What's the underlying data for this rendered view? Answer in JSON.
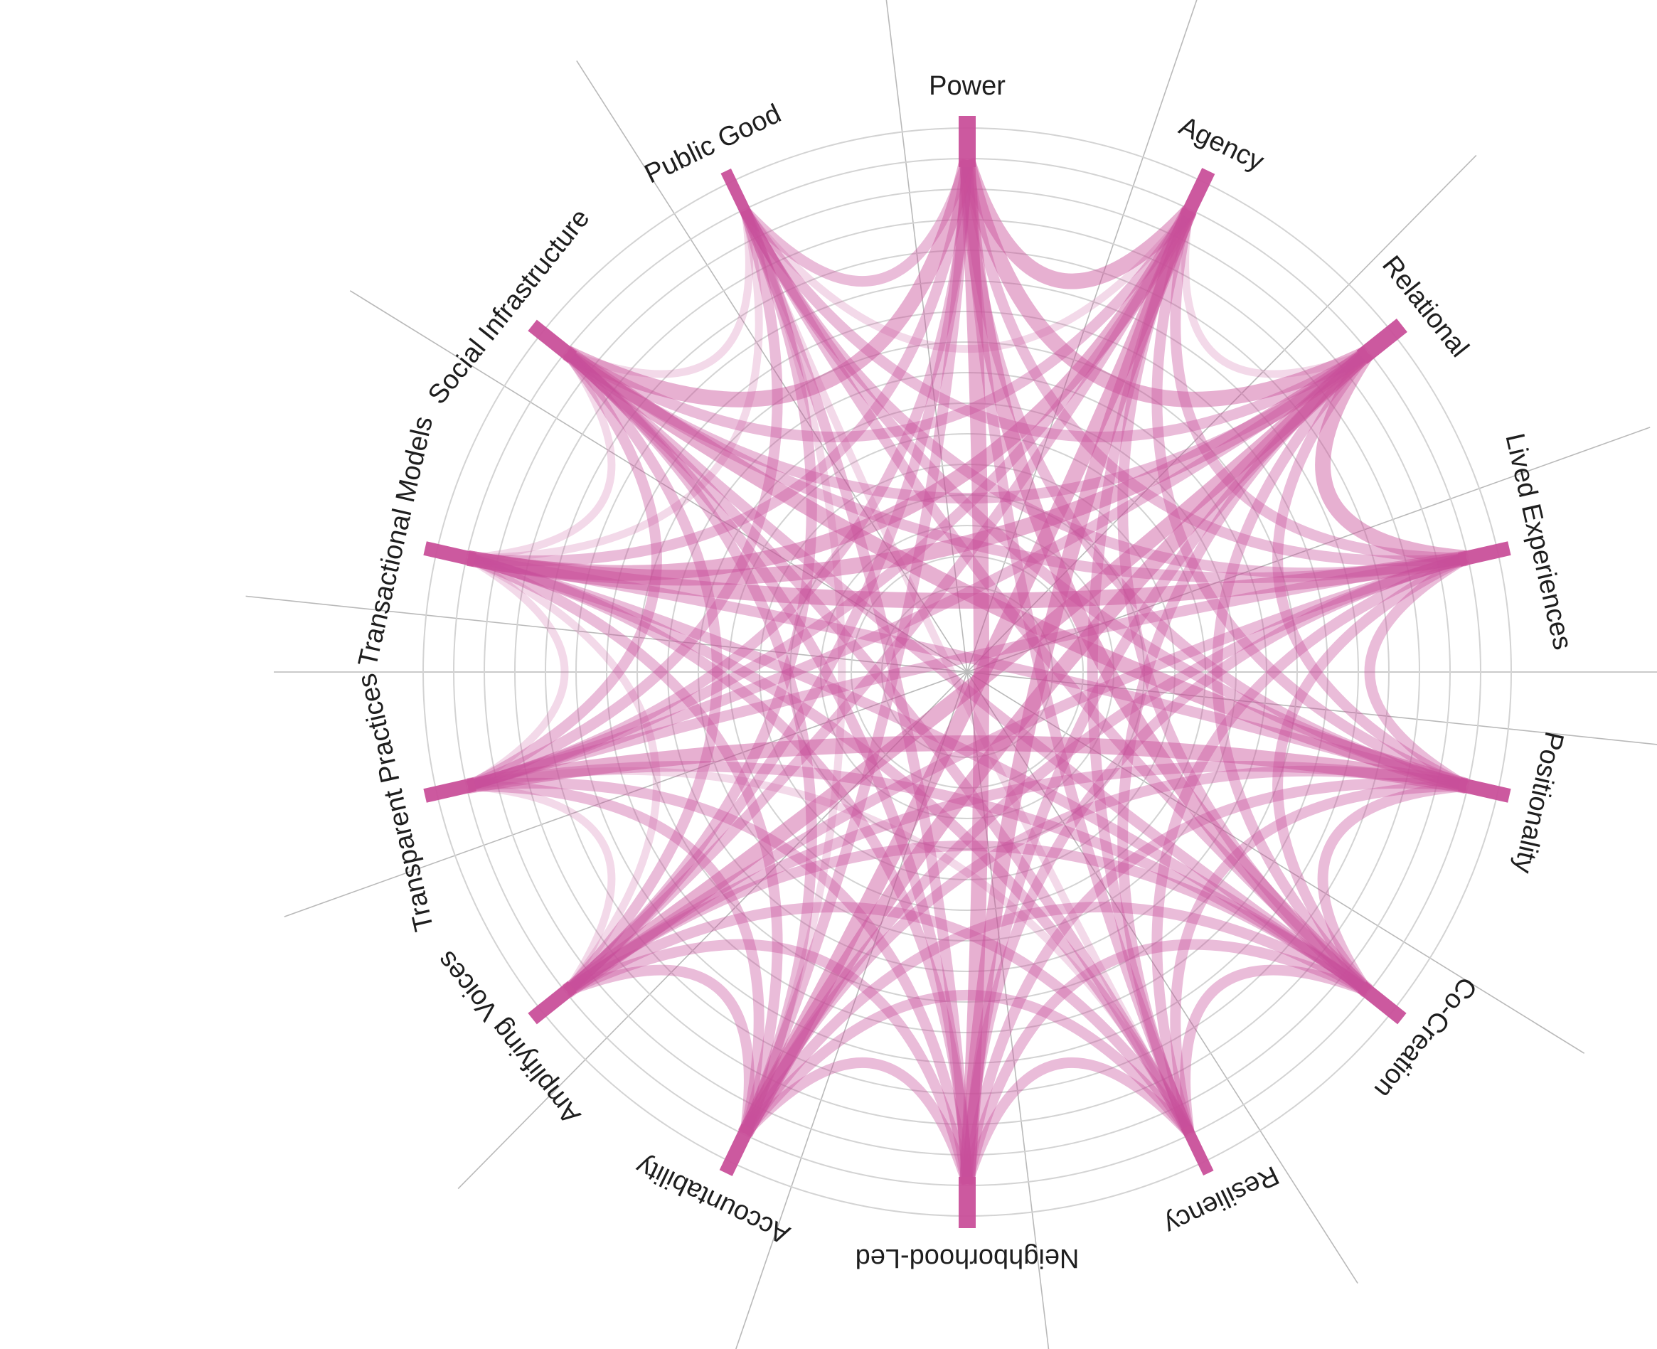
{
  "diagram": {
    "type": "chord",
    "accent_color": "#c9509a",
    "ring_color": "#d3d3d3",
    "spoke_color": "#b9b9b9",
    "nodes": [
      {
        "label": "Power",
        "bar": 3
      },
      {
        "label": "Agency",
        "bar": 2
      },
      {
        "label": "Relational",
        "bar": 3
      },
      {
        "label": "Lived Experiences",
        "bar": 2
      },
      {
        "label": "Positionality",
        "bar": 2
      },
      {
        "label": "Co-Creation",
        "bar": 2
      },
      {
        "label": "Resiliency",
        "bar": 1
      },
      {
        "label": "Neighborhood-Led",
        "bar": 3
      },
      {
        "label": "Accountability",
        "bar": 2
      },
      {
        "label": "Amplifying Voices",
        "bar": 2
      },
      {
        "label": "Transparent  Practices",
        "bar": 2
      },
      {
        "label": "Transactional Models",
        "bar": 2
      },
      {
        "label": "Social Infrastructure",
        "bar": 2
      },
      {
        "label": "Public Good",
        "bar": 1
      }
    ],
    "links": [
      {
        "source": "Power",
        "target": "Agency",
        "weight": 3
      },
      {
        "source": "Power",
        "target": "Relational",
        "weight": 3
      },
      {
        "source": "Power",
        "target": "Lived Experiences",
        "weight": 2
      },
      {
        "source": "Power",
        "target": "Positionality",
        "weight": 2
      },
      {
        "source": "Power",
        "target": "Co-Creation",
        "weight": 3
      },
      {
        "source": "Power",
        "target": "Resiliency",
        "weight": 2
      },
      {
        "source": "Power",
        "target": "Neighborhood-Led",
        "weight": 3
      },
      {
        "source": "Power",
        "target": "Accountability",
        "weight": 2
      },
      {
        "source": "Power",
        "target": "Amplifying Voices",
        "weight": 2
      },
      {
        "source": "Power",
        "target": "Transparent  Practices",
        "weight": 2
      },
      {
        "source": "Power",
        "target": "Transactional Models",
        "weight": 2
      },
      {
        "source": "Power",
        "target": "Social Infrastructure",
        "weight": 3
      },
      {
        "source": "Power",
        "target": "Public Good",
        "weight": 2
      },
      {
        "source": "Agency",
        "target": "Relational",
        "weight": 1
      },
      {
        "source": "Agency",
        "target": "Lived Experiences",
        "weight": 2
      },
      {
        "source": "Agency",
        "target": "Positionality",
        "weight": 2
      },
      {
        "source": "Agency",
        "target": "Co-Creation",
        "weight": 2
      },
      {
        "source": "Agency",
        "target": "Resiliency",
        "weight": 2
      },
      {
        "source": "Agency",
        "target": "Neighborhood-Led",
        "weight": 3
      },
      {
        "source": "Agency",
        "target": "Accountability",
        "weight": 3
      },
      {
        "source": "Agency",
        "target": "Amplifying Voices",
        "weight": 2
      },
      {
        "source": "Agency",
        "target": "Transparent  Practices",
        "weight": 2
      },
      {
        "source": "Agency",
        "target": "Transactional Models",
        "weight": 3
      },
      {
        "source": "Agency",
        "target": "Social Infrastructure",
        "weight": 2
      },
      {
        "source": "Agency",
        "target": "Public Good",
        "weight": 1
      },
      {
        "source": "Relational",
        "target": "Lived Experiences",
        "weight": 3
      },
      {
        "source": "Relational",
        "target": "Positionality",
        "weight": 2
      },
      {
        "source": "Relational",
        "target": "Co-Creation",
        "weight": 2
      },
      {
        "source": "Relational",
        "target": "Resiliency",
        "weight": 2
      },
      {
        "source": "Relational",
        "target": "Neighborhood-Led",
        "weight": 2
      },
      {
        "source": "Relational",
        "target": "Accountability",
        "weight": 3
      },
      {
        "source": "Relational",
        "target": "Amplifying Voices",
        "weight": 3
      },
      {
        "source": "Relational",
        "target": "Transparent  Practices",
        "weight": 2
      },
      {
        "source": "Relational",
        "target": "Transactional Models",
        "weight": 3
      },
      {
        "source": "Relational",
        "target": "Social Infrastructure",
        "weight": 2
      },
      {
        "source": "Relational",
        "target": "Public Good",
        "weight": 2
      },
      {
        "source": "Lived Experiences",
        "target": "Positionality",
        "weight": 2
      },
      {
        "source": "Lived Experiences",
        "target": "Co-Creation",
        "weight": 2
      },
      {
        "source": "Lived Experiences",
        "target": "Resiliency",
        "weight": 2
      },
      {
        "source": "Lived Experiences",
        "target": "Neighborhood-Led",
        "weight": 2
      },
      {
        "source": "Lived Experiences",
        "target": "Accountability",
        "weight": 2
      },
      {
        "source": "Lived Experiences",
        "target": "Amplifying Voices",
        "weight": 2
      },
      {
        "source": "Lived Experiences",
        "target": "Transparent  Practices",
        "weight": 2
      },
      {
        "source": "Lived Experiences",
        "target": "Transactional Models",
        "weight": 3
      },
      {
        "source": "Lived Experiences",
        "target": "Social Infrastructure",
        "weight": 2
      },
      {
        "source": "Lived Experiences",
        "target": "Public Good",
        "weight": 2
      },
      {
        "source": "Positionality",
        "target": "Co-Creation",
        "weight": 2
      },
      {
        "source": "Positionality",
        "target": "Resiliency",
        "weight": 2
      },
      {
        "source": "Positionality",
        "target": "Neighborhood-Led",
        "weight": 2
      },
      {
        "source": "Positionality",
        "target": "Accountability",
        "weight": 2
      },
      {
        "source": "Positionality",
        "target": "Amplifying Voices",
        "weight": 2
      },
      {
        "source": "Positionality",
        "target": "Transparent  Practices",
        "weight": 3
      },
      {
        "source": "Positionality",
        "target": "Transactional Models",
        "weight": 2
      },
      {
        "source": "Positionality",
        "target": "Social Infrastructure",
        "weight": 3
      },
      {
        "source": "Positionality",
        "target": "Public Good",
        "weight": 2
      },
      {
        "source": "Co-Creation",
        "target": "Resiliency",
        "weight": 2
      },
      {
        "source": "Co-Creation",
        "target": "Neighborhood-Led",
        "weight": 2
      },
      {
        "source": "Co-Creation",
        "target": "Accountability",
        "weight": 2
      },
      {
        "source": "Co-Creation",
        "target": "Amplifying Voices",
        "weight": 2
      },
      {
        "source": "Co-Creation",
        "target": "Transparent  Practices",
        "weight": 2
      },
      {
        "source": "Co-Creation",
        "target": "Transactional Models",
        "weight": 2
      },
      {
        "source": "Co-Creation",
        "target": "Social Infrastructure",
        "weight": 2
      },
      {
        "source": "Co-Creation",
        "target": "Public Good",
        "weight": 2
      },
      {
        "source": "Resiliency",
        "target": "Neighborhood-Led",
        "weight": 2
      },
      {
        "source": "Resiliency",
        "target": "Accountability",
        "weight": 2
      },
      {
        "source": "Resiliency",
        "target": "Amplifying Voices",
        "weight": 2
      },
      {
        "source": "Resiliency",
        "target": "Transparent  Practices",
        "weight": 1
      },
      {
        "source": "Resiliency",
        "target": "Transactional Models",
        "weight": 2
      },
      {
        "source": "Resiliency",
        "target": "Social Infrastructure",
        "weight": 2
      },
      {
        "source": "Resiliency",
        "target": "Public Good",
        "weight": 1
      },
      {
        "source": "Neighborhood-Led",
        "target": "Accountability",
        "weight": 2
      },
      {
        "source": "Neighborhood-Led",
        "target": "Amplifying Voices",
        "weight": 2
      },
      {
        "source": "Neighborhood-Led",
        "target": "Transparent  Practices",
        "weight": 2
      },
      {
        "source": "Neighborhood-Led",
        "target": "Transactional Models",
        "weight": 2
      },
      {
        "source": "Neighborhood-Led",
        "target": "Social Infrastructure",
        "weight": 2
      },
      {
        "source": "Neighborhood-Led",
        "target": "Public Good",
        "weight": 2
      },
      {
        "source": "Accountability",
        "target": "Amplifying Voices",
        "weight": 2
      },
      {
        "source": "Accountability",
        "target": "Transparent  Practices",
        "weight": 2
      },
      {
        "source": "Accountability",
        "target": "Transactional Models",
        "weight": 2
      },
      {
        "source": "Accountability",
        "target": "Social Infrastructure",
        "weight": 2
      },
      {
        "source": "Accountability",
        "target": "Public Good",
        "weight": 1
      },
      {
        "source": "Amplifying Voices",
        "target": "Transparent  Practices",
        "weight": 1
      },
      {
        "source": "Amplifying Voices",
        "target": "Transactional Models",
        "weight": 1
      },
      {
        "source": "Amplifying Voices",
        "target": "Social Infrastructure",
        "weight": 2
      },
      {
        "source": "Amplifying Voices",
        "target": "Public Good",
        "weight": 2
      },
      {
        "source": "Transparent  Practices",
        "target": "Transactional Models",
        "weight": 1
      },
      {
        "source": "Transparent  Practices",
        "target": "Social Infrastructure",
        "weight": 2
      },
      {
        "source": "Transparent  Practices",
        "target": "Public Good",
        "weight": 2
      },
      {
        "source": "Transactional Models",
        "target": "Social Infrastructure",
        "weight": 1
      },
      {
        "source": "Transactional Models",
        "target": "Public Good",
        "weight": 1
      },
      {
        "source": "Social Infrastructure",
        "target": "Public Good",
        "weight": 1
      }
    ]
  }
}
